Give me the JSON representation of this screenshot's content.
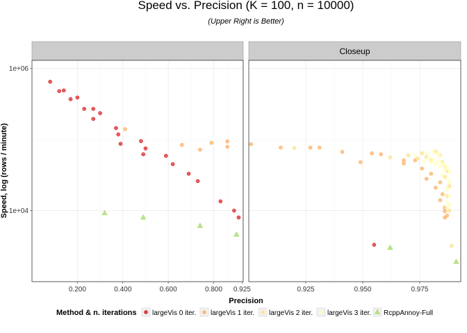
{
  "chart_data": {
    "type": "scatter",
    "title": "Speed vs. Precision (K = 100, n = 10000)",
    "subtitle": "(Upper Right is Better)",
    "xlabel": "Precision",
    "ylabel": "Speed, log (rows / minute)",
    "y_scale": "log10",
    "ylim": [
      1000,
      1300000
    ],
    "y_ticks": [
      {
        "value": 1000000,
        "label": "1e+06"
      },
      {
        "value": 10000,
        "label": "1e+04"
      }
    ],
    "grid": true,
    "legend": {
      "title": "Method & n. iterations",
      "position": "bottom",
      "entries": [
        {
          "label": "largeVis 0 iter.",
          "color": "#d7191c",
          "shape": "circle"
        },
        {
          "label": "largeVis 1 iter.",
          "color": "#fdae61",
          "shape": "circle"
        },
        {
          "label": "largeVis 2 iter.",
          "color": "#fee08b",
          "shape": "circle"
        },
        {
          "label": "largeVis 3 iter.",
          "color": "#ffffbf",
          "shape": "circle"
        },
        {
          "label": "RcppAnnoy-Full",
          "color": "#a6d96a",
          "shape": "triangle"
        }
      ]
    },
    "panels": [
      {
        "strip": "",
        "xlim": [
          0,
          0.93
        ],
        "x_ticks": [
          {
            "value": 0.2,
            "label": "0.200"
          },
          {
            "value": 0.4,
            "label": "0.400"
          },
          {
            "value": 0.6,
            "label": "0.600"
          },
          {
            "value": 0.8,
            "label": "0.800"
          },
          {
            "value": 0.925,
            "label": "0.925"
          }
        ],
        "series": [
          {
            "name": "largeVis 0 iter.",
            "points": [
              [
                0.08,
                650000
              ],
              [
                0.12,
                480000
              ],
              [
                0.14,
                490000
              ],
              [
                0.17,
                370000
              ],
              [
                0.2,
                390000
              ],
              [
                0.23,
                270000
              ],
              [
                0.27,
                270000
              ],
              [
                0.27,
                195000
              ],
              [
                0.3,
                235000
              ],
              [
                0.37,
                145000
              ],
              [
                0.38,
                118000
              ],
              [
                0.39,
                87000
              ],
              [
                0.48,
                95000
              ],
              [
                0.49,
                62000
              ],
              [
                0.5,
                75000
              ],
              [
                0.59,
                59000
              ],
              [
                0.62,
                45000
              ],
              [
                0.69,
                33000
              ],
              [
                0.73,
                26000
              ],
              [
                0.83,
                13500
              ],
              [
                0.89,
                10000
              ],
              [
                0.91,
                8000
              ]
            ]
          },
          {
            "name": "largeVis 1 iter.",
            "points": [
              [
                0.41,
                140000
              ],
              [
                0.66,
                84000
              ],
              [
                0.74,
                72000
              ],
              [
                0.79,
                90000
              ],
              [
                0.86,
                94000
              ],
              [
                0.86,
                79000
              ]
            ]
          },
          {
            "name": "RcppAnnoy-Full",
            "points": [
              [
                0.32,
                9200
              ],
              [
                0.49,
                8000
              ],
              [
                0.74,
                6100
              ],
              [
                0.9,
                4600
              ]
            ]
          }
        ]
      },
      {
        "strip": "Closeup",
        "xlim": [
          0.9,
          0.993
        ],
        "x_ticks": [
          {
            "value": 0.925,
            "label": "0.925"
          },
          {
            "value": 0.95,
            "label": "0.950"
          },
          {
            "value": 0.975,
            "label": "0.975"
          }
        ],
        "series": [
          {
            "name": "largeVis 0 iter.",
            "points": [
              [
                0.955,
                3300
              ]
            ]
          },
          {
            "name": "largeVis 1 iter.",
            "points": [
              [
                0.901,
                86000
              ],
              [
                0.914,
                77000
              ],
              [
                0.927,
                77000
              ],
              [
                0.931,
                77000
              ],
              [
                0.941,
                67000
              ],
              [
                0.954,
                64000
              ],
              [
                0.958,
                62000
              ],
              [
                0.949,
                48000
              ],
              [
                0.968,
                51000
              ],
              [
                0.968,
                46000
              ],
              [
                0.973,
                51000
              ],
              [
                0.976,
                39000
              ],
              [
                0.98,
                33000
              ],
              [
                0.978,
                28000
              ],
              [
                0.984,
                25000
              ],
              [
                0.982,
                21000
              ],
              [
                0.985,
                17000
              ],
              [
                0.984,
                14000
              ],
              [
                0.986,
                11000
              ],
              [
                0.986,
                9800
              ],
              [
                0.987,
                8500
              ],
              [
                0.986,
                8000
              ]
            ]
          },
          {
            "name": "largeVis 2 iter.",
            "points": [
              [
                0.92,
                76000
              ],
              [
                0.962,
                56000
              ],
              [
                0.97,
                60000
              ],
              [
                0.976,
                64000
              ],
              [
                0.982,
                68000
              ],
              [
                0.978,
                57000
              ],
              [
                0.974,
                54000
              ],
              [
                0.984,
                60000
              ],
              [
                0.98,
                51000
              ],
              [
                0.985,
                48000
              ],
              [
                0.986,
                42000
              ],
              [
                0.987,
                36000
              ],
              [
                0.986,
                30000
              ],
              [
                0.988,
                22000
              ],
              [
                0.987,
                16000
              ],
              [
                0.988,
                10000
              ],
              [
                0.989,
                3200
              ]
            ]
          },
          {
            "name": "largeVis 3 iter.",
            "points": [
              [
                0.973,
                61000
              ],
              [
                0.978,
                65000
              ],
              [
                0.981,
                67000
              ],
              [
                0.983,
                63000
              ],
              [
                0.984,
                58000
              ],
              [
                0.979,
                55000
              ],
              [
                0.981,
                52000
              ],
              [
                0.983,
                49000
              ],
              [
                0.977,
                49000
              ],
              [
                0.985,
                46000
              ],
              [
                0.986,
                43000
              ],
              [
                0.987,
                40000
              ],
              [
                0.988,
                35000
              ],
              [
                0.985,
                32000
              ],
              [
                0.987,
                28000
              ],
              [
                0.988,
                25000
              ],
              [
                0.986,
                38000
              ],
              [
                0.984,
                42000
              ],
              [
                0.982,
                45000
              ],
              [
                0.98,
                48000
              ],
              [
                0.987,
                20000
              ],
              [
                0.988,
                16000
              ],
              [
                0.987,
                13000
              ],
              [
                0.988,
                12000
              ],
              [
                0.987,
                11000
              ]
            ]
          },
          {
            "name": "RcppAnnoy-Full",
            "points": [
              [
                0.962,
                3000
              ],
              [
                0.991,
                1900
              ]
            ]
          }
        ]
      }
    ]
  }
}
